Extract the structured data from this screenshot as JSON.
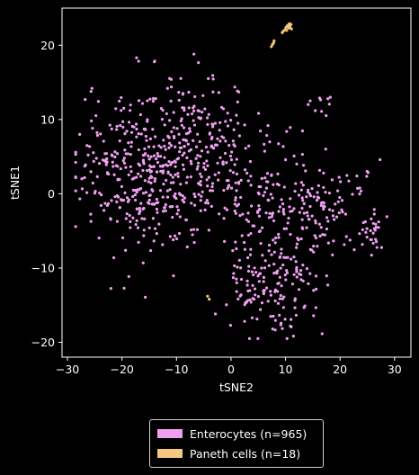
{
  "chart_data": {
    "type": "scatter",
    "title": "",
    "xlabel": "tSNE2",
    "ylabel": "tSNE1",
    "xlim": [
      -31,
      33
    ],
    "ylim": [
      -22,
      25
    ],
    "xticks": [
      -30,
      -20,
      -10,
      0,
      10,
      20,
      30
    ],
    "yticks": [
      -20,
      -10,
      0,
      10,
      20
    ],
    "grid": false,
    "legend_position": "below",
    "background": "#000000",
    "series": [
      {
        "name": "Enterocytes (n=965)",
        "color": "#ee9ff0",
        "n": 965,
        "clusters": [
          {
            "cx": -14,
            "cy": 3,
            "sx": 7,
            "sy": 5.5,
            "n": 430
          },
          {
            "cx": -6,
            "cy": 8,
            "sx": 5,
            "sy": 4,
            "n": 120
          },
          {
            "cx": 8,
            "cy": -12,
            "sx": 4.5,
            "sy": 3.5,
            "n": 170
          },
          {
            "cx": 5,
            "cy": 0,
            "sx": 5,
            "sy": 3.5,
            "n": 90
          },
          {
            "cx": 15,
            "cy": -2,
            "sx": 3.5,
            "sy": 3,
            "n": 95
          },
          {
            "cx": 26,
            "cy": -5.5,
            "sx": 1.5,
            "sy": 1.5,
            "n": 30
          },
          {
            "cx": 24,
            "cy": 2,
            "sx": 1.5,
            "sy": 1.2,
            "n": 12
          },
          {
            "cx": 17,
            "cy": 12,
            "sx": 1.2,
            "sy": 0.8,
            "n": 10
          },
          {
            "cx": 12,
            "cy": 6,
            "sx": 4,
            "sy": 3,
            "n": 8
          }
        ]
      },
      {
        "name": "Paneth cells (n=18)",
        "color": "#f5c77e",
        "n": 18,
        "points": [
          [
            7.4,
            19.8
          ],
          [
            7.6,
            20.1
          ],
          [
            7.8,
            20.3
          ],
          [
            7.9,
            20.6
          ],
          [
            9.4,
            21.7
          ],
          [
            9.6,
            21.9
          ],
          [
            9.9,
            22.1
          ],
          [
            10.1,
            22.4
          ],
          [
            10.3,
            22.6
          ],
          [
            10.5,
            22.7
          ],
          [
            10.6,
            22.3
          ],
          [
            10.8,
            22.5
          ],
          [
            11.0,
            22.8
          ],
          [
            10.2,
            22.0
          ],
          [
            10.7,
            22.9
          ],
          [
            11.1,
            22.2
          ],
          [
            -4.3,
            -13.8
          ],
          [
            -4.0,
            -14.2
          ]
        ]
      }
    ]
  }
}
